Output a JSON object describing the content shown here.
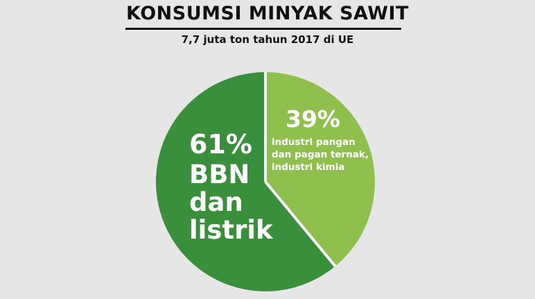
{
  "title": "KONSUMSI MINYAK SAWIT",
  "subtitle": "7,7 juta ton tahun 2017 di UE",
  "colors": {
    "background": "#e6e6e6",
    "dark_green": "#3a8f3c",
    "light_green": "#8fc04d",
    "separator": "#ffffff"
  },
  "chart_data": {
    "type": "pie",
    "title": "KONSUMSI MINYAK SAWIT",
    "subtitle": "7,7 juta ton tahun 2017 di UE",
    "slices": [
      {
        "label": "industri pangan dan pagan ternak, industri kimia",
        "value": 39,
        "percent_label": "39%",
        "color": "#8fc04d"
      },
      {
        "label": "BBN dan listrik",
        "value": 61,
        "percent_label": "61%",
        "color": "#3a8f3c"
      }
    ]
  }
}
